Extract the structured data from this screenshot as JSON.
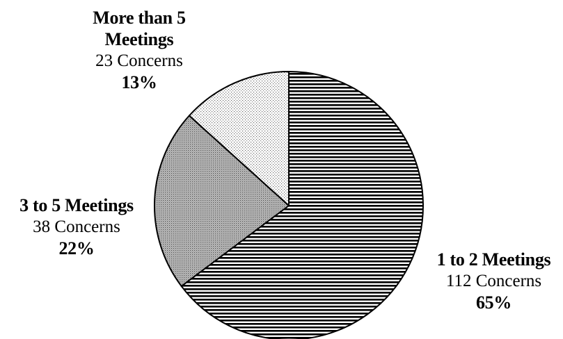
{
  "chart_data": {
    "type": "pie",
    "title": "",
    "start_angle_deg": 0,
    "direction": "clockwise",
    "slices": [
      {
        "label": "1 to 2 Meetings",
        "count_text": "112 Concerns",
        "percent_text": "65%",
        "value": 112,
        "percent": 65,
        "pattern": "horizontal-stripes"
      },
      {
        "label": "3 to 5 Meetings",
        "count_text": "38 Concerns",
        "percent_text": "22%",
        "value": 38,
        "percent": 22,
        "pattern": "gray-dots"
      },
      {
        "label": "More than 5 Meetings",
        "label_lines": [
          "More than 5",
          "Meetings"
        ],
        "count_text": "23 Concerns",
        "percent_text": "13%",
        "value": 23,
        "percent": 13,
        "pattern": "light-dots"
      }
    ],
    "colors": {
      "stroke": "#000000",
      "background": "#ffffff",
      "stripe": "#000000",
      "dot_dark": "#555555",
      "dot_light": "#777777"
    }
  }
}
